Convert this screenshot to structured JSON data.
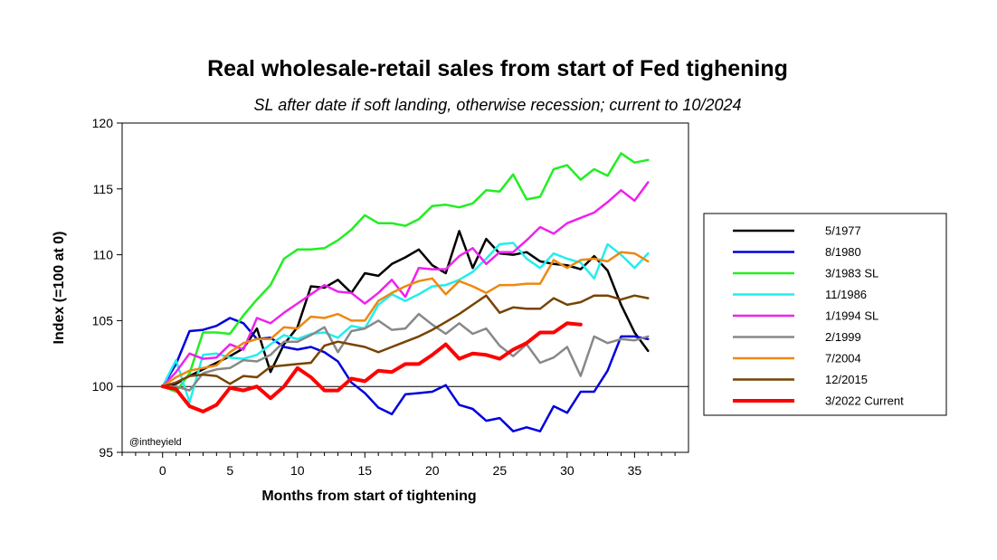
{
  "chart_data": {
    "type": "line",
    "title": "Real wholesale-retail sales from start of Fed tighening",
    "subtitle": "SL after date if soft landing, otherwise recession; current to 10/2024",
    "xlabel": "Months from start of tightening",
    "ylabel": "Index (=100 at 0)",
    "xlim": [
      -3,
      39
    ],
    "ylim": [
      95,
      120
    ],
    "xticks": [
      0,
      5,
      10,
      15,
      20,
      25,
      30,
      35
    ],
    "yticks": [
      95,
      100,
      105,
      110,
      115,
      120
    ],
    "reference_line_y": 100,
    "credit": "@intheyield",
    "legend_position": "right",
    "series": [
      {
        "name": "5/1977",
        "color": "#000000",
        "values": [
          100,
          100.2,
          100.8,
          101.3,
          101.8,
          102.3,
          102.9,
          104.4,
          101.1,
          103.2,
          104.5,
          107.6,
          107.5,
          108.1,
          107.1,
          108.6,
          108.4,
          109.3,
          109.8,
          110.4,
          109.2,
          108.6,
          111.8,
          109.0,
          111.2,
          110.1,
          110.0,
          110.2,
          109.5,
          109.3,
          109.2,
          108.9,
          109.9,
          108.8,
          106.2,
          104.1,
          102.7
        ]
      },
      {
        "name": "8/1980",
        "color": "#0000dd",
        "values": [
          100,
          101.7,
          104.2,
          104.3,
          104.6,
          105.2,
          104.8,
          103.6,
          103.7,
          103.0,
          102.8,
          103.0,
          102.6,
          101.9,
          100.3,
          99.5,
          98.4,
          97.9,
          99.4,
          99.5,
          99.6,
          100.1,
          98.6,
          98.3,
          97.4,
          97.6,
          96.6,
          96.9,
          96.6,
          98.5,
          98.0,
          99.6,
          99.6,
          101.2,
          103.8,
          103.8,
          103.6
        ]
      },
      {
        "name": "3/1983 SL",
        "color": "#22ee22",
        "values": [
          100,
          99.6,
          101.0,
          104.1,
          104.1,
          104.0,
          105.4,
          106.6,
          107.7,
          109.7,
          110.4,
          110.4,
          110.5,
          111.1,
          111.9,
          113.0,
          112.4,
          112.4,
          112.2,
          112.7,
          113.7,
          113.8,
          113.6,
          113.9,
          114.9,
          114.8,
          116.1,
          114.2,
          114.4,
          116.5,
          116.8,
          115.7,
          116.5,
          116.0,
          117.7,
          117.0,
          117.2
        ]
      },
      {
        "name": "11/1986",
        "color": "#22eeee",
        "values": [
          100,
          102.0,
          98.8,
          102.4,
          102.5,
          102.2,
          102.1,
          102.4,
          103.2,
          103.9,
          103.6,
          104.0,
          104.1,
          103.7,
          104.6,
          104.4,
          106.2,
          107.0,
          106.5,
          107.0,
          107.6,
          107.7,
          108.1,
          108.7,
          109.7,
          110.8,
          110.9,
          109.7,
          109.0,
          110.1,
          109.7,
          109.4,
          108.2,
          110.8,
          110.0,
          109.0,
          110.1
        ]
      },
      {
        "name": "1/1994 SL",
        "color": "#ee22ee",
        "values": [
          100,
          101.1,
          102.5,
          102.1,
          102.2,
          103.2,
          102.8,
          105.2,
          104.8,
          105.6,
          106.3,
          107.0,
          107.7,
          107.2,
          107.1,
          106.3,
          107.1,
          108.1,
          106.8,
          109.0,
          108.9,
          108.9,
          109.9,
          110.5,
          109.3,
          110.2,
          110.2,
          111.1,
          112.1,
          111.6,
          112.4,
          112.8,
          113.2,
          114.0,
          114.9,
          114.1,
          115.5
        ]
      },
      {
        "name": "2/1999",
        "color": "#888888",
        "values": [
          100,
          100.0,
          99.7,
          101.0,
          101.3,
          101.4,
          102.0,
          101.9,
          102.4,
          103.4,
          103.4,
          103.9,
          104.5,
          102.6,
          104.2,
          104.4,
          105.0,
          104.3,
          104.4,
          105.5,
          104.7,
          104.0,
          104.8,
          104.0,
          104.4,
          103.1,
          102.3,
          103.2,
          101.8,
          102.2,
          103.0,
          100.8,
          103.8,
          103.3,
          103.6,
          103.5,
          103.8
        ]
      },
      {
        "name": "7/2004",
        "color": "#ee8811",
        "values": [
          100,
          100.7,
          101.2,
          101.4,
          101.6,
          102.6,
          103.3,
          103.6,
          103.6,
          104.5,
          104.4,
          105.3,
          105.2,
          105.5,
          105.0,
          105.0,
          106.5,
          107.1,
          107.6,
          108.0,
          108.2,
          107.0,
          108.0,
          107.6,
          107.1,
          107.7,
          107.7,
          107.8,
          107.8,
          109.6,
          109.0,
          109.6,
          109.7,
          109.5,
          110.2,
          110.1,
          109.5
        ]
      },
      {
        "name": "12/2015",
        "color": "#774400",
        "values": [
          100,
          100.3,
          100.8,
          100.9,
          100.8,
          100.2,
          100.8,
          100.7,
          101.5,
          101.6,
          101.7,
          101.8,
          103.1,
          103.4,
          103.2,
          103.0,
          102.6,
          103.0,
          103.4,
          103.8,
          104.3,
          104.9,
          105.5,
          106.2,
          106.9,
          105.6,
          106.0,
          105.9,
          105.9,
          106.7,
          106.2,
          106.4,
          106.9,
          106.9,
          106.6,
          106.9,
          106.7
        ]
      },
      {
        "name": "3/2022 Current",
        "color": "#ff0000",
        "values": [
          100,
          99.8,
          98.5,
          98.1,
          98.6,
          99.9,
          99.7,
          100.0,
          99.1,
          100.0,
          101.4,
          100.7,
          99.7,
          99.7,
          100.6,
          100.4,
          101.2,
          101.1,
          101.7,
          101.7,
          102.4,
          103.2,
          102.1,
          102.5,
          102.4,
          102.1,
          102.8,
          103.3,
          104.1,
          104.1,
          104.8,
          104.7
        ]
      }
    ]
  }
}
